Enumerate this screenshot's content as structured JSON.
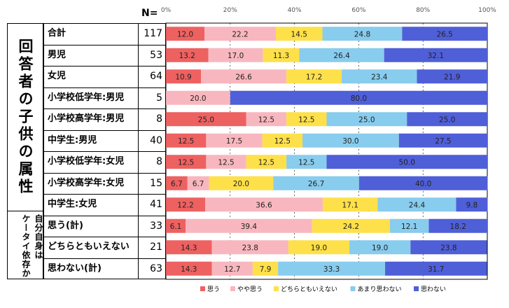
{
  "header": {
    "n_label": "N="
  },
  "groups": {
    "children": "回答者の子供の属性",
    "dependency_a": "ケータイ依存か",
    "dependency_b": "自分自身は"
  },
  "colors": [
    "#EE6161",
    "#F8B7BF",
    "#FEE04A",
    "#88CCEE",
    "#4F5FD8"
  ],
  "chart_data": {
    "type": "bar",
    "stacked": true,
    "orientation": "horizontal",
    "xlim": [
      0,
      100
    ],
    "x_ticks": [
      "0%",
      "20%",
      "40%",
      "60%",
      "80%",
      "100%"
    ],
    "categories": [
      "合計",
      "男児",
      "女児",
      "小学校低学年:男児",
      "小学校高学年:男児",
      "中学生:男児",
      "小学校低学年:女児",
      "小学校高学年:女児",
      "中学生:女児",
      "思う(計)",
      "どちらともいえない",
      "思わない(計)"
    ],
    "n": [
      "117",
      "53",
      "64",
      "5",
      "8",
      "40",
      "8",
      "15",
      "41",
      "33",
      "21",
      "63"
    ],
    "series": [
      {
        "name": "思う",
        "values": [
          12.0,
          13.2,
          10.9,
          0,
          25.0,
          12.5,
          12.5,
          6.7,
          12.2,
          6.1,
          14.3,
          14.3
        ],
        "labels": [
          "12.0",
          "13.2",
          "10.9",
          "",
          "25.0",
          "12.5",
          "12.5",
          "6.7",
          "12.2",
          "6.1",
          "14.3",
          "14.3"
        ]
      },
      {
        "name": "やや思う",
        "values": [
          22.2,
          17.0,
          26.6,
          20.0,
          12.5,
          17.5,
          12.5,
          6.7,
          36.6,
          39.4,
          23.8,
          12.7
        ],
        "labels": [
          "22.2",
          "17.0",
          "26.6",
          "20.0",
          "12.5",
          "17.5",
          "12.5",
          "6.7",
          "36.6",
          "39.4",
          "23.8",
          "12.7"
        ]
      },
      {
        "name": "どちらともいえない",
        "values": [
          14.5,
          11.3,
          17.2,
          0,
          12.5,
          12.5,
          12.5,
          20.0,
          17.1,
          24.2,
          19.0,
          7.9
        ],
        "labels": [
          "14.5",
          "11.3",
          "17.2",
          "",
          "12.5",
          "12.5",
          "12.5",
          "20.0",
          "17.1",
          "24.2",
          "19.0",
          "7.9"
        ]
      },
      {
        "name": "あまり思わない",
        "values": [
          24.8,
          26.4,
          23.4,
          0,
          25.0,
          30.0,
          12.5,
          26.7,
          24.4,
          12.1,
          19.0,
          33.3
        ],
        "labels": [
          "24.8",
          "26.4",
          "23.4",
          "",
          "25.0",
          "30.0",
          "12.5",
          "26.7",
          "24.4",
          "12.1",
          "19.0",
          "33.3"
        ]
      },
      {
        "name": "思わない",
        "values": [
          26.5,
          32.1,
          21.9,
          80.0,
          25.0,
          27.5,
          50.0,
          40.0,
          9.8,
          18.2,
          23.8,
          31.7
        ],
        "labels": [
          "26.5",
          "32.1",
          "21.9",
          "80.0",
          "25.0",
          "27.5",
          "50.0",
          "40.0",
          "9.8",
          "18.2",
          "23.8",
          "31.7"
        ]
      }
    ]
  }
}
